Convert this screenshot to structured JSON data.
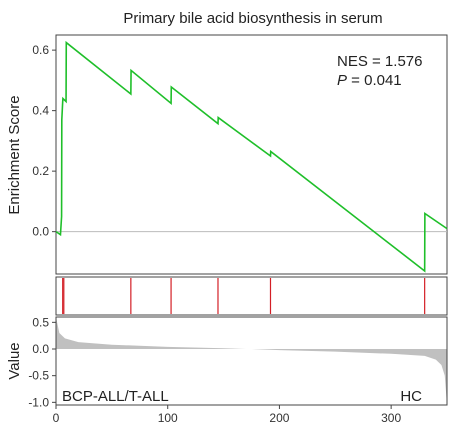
{
  "chart_data": {
    "type": "line",
    "title": "Primary bile acid biosynthesis in serum",
    "stats": {
      "nes": "NES = 1.576",
      "p_symbol": "P",
      "p_value": " = 0.041"
    },
    "es_panel": {
      "ylabel": "Enrichment Score",
      "ylim": [
        -0.14,
        0.65
      ],
      "yticks": [
        0.0,
        0.2,
        0.4,
        0.6
      ],
      "ytick_labels": [
        "0.0",
        "0.2",
        "0.4",
        "0.6"
      ],
      "line_color": "#1fbf2a",
      "x": [
        0,
        4,
        5,
        5.2,
        6,
        6.2,
        9,
        9.2,
        67,
        67.2,
        103,
        103.2,
        145,
        145.2,
        192,
        192.2,
        330,
        330.2,
        350
      ],
      "es": [
        0.0,
        -0.01,
        0.05,
        0.37,
        0.43,
        0.44,
        0.43,
        0.625,
        0.455,
        0.533,
        0.424,
        0.478,
        0.357,
        0.377,
        0.25,
        0.265,
        -0.13,
        0.06,
        0.01
      ]
    },
    "hits_panel": {
      "positions": [
        6,
        7,
        67,
        103,
        145,
        192,
        330
      ],
      "bar_color": "#d31f26"
    },
    "value_panel": {
      "ylabel": "Value",
      "ylim": [
        -1.05,
        0.6
      ],
      "yticks": [
        -1.0,
        -0.5,
        0.0,
        0.5
      ],
      "ytick_labels": [
        "-1.0",
        "-0.5",
        "0.0",
        "0.5"
      ],
      "fill_color": "#c0c0c0",
      "curve_points": [
        [
          0,
          0.6
        ],
        [
          3,
          0.3
        ],
        [
          8,
          0.2
        ],
        [
          20,
          0.13
        ],
        [
          50,
          0.08
        ],
        [
          100,
          0.04
        ],
        [
          150,
          0.015
        ],
        [
          170,
          0.0
        ],
        [
          175,
          0.0
        ],
        [
          200,
          -0.02
        ],
        [
          250,
          -0.05
        ],
        [
          300,
          -0.09
        ],
        [
          330,
          -0.13
        ],
        [
          340,
          -0.2
        ],
        [
          345,
          -0.3
        ],
        [
          348,
          -0.5
        ],
        [
          350,
          -1.05
        ]
      ],
      "left_label": "BCP-ALL/T-ALL",
      "right_label": "HC"
    },
    "xaxis": {
      "xlim": [
        0,
        350
      ],
      "ticks": [
        0,
        100,
        200,
        300
      ],
      "tick_labels": [
        "0",
        "100",
        "200",
        "300"
      ]
    }
  }
}
